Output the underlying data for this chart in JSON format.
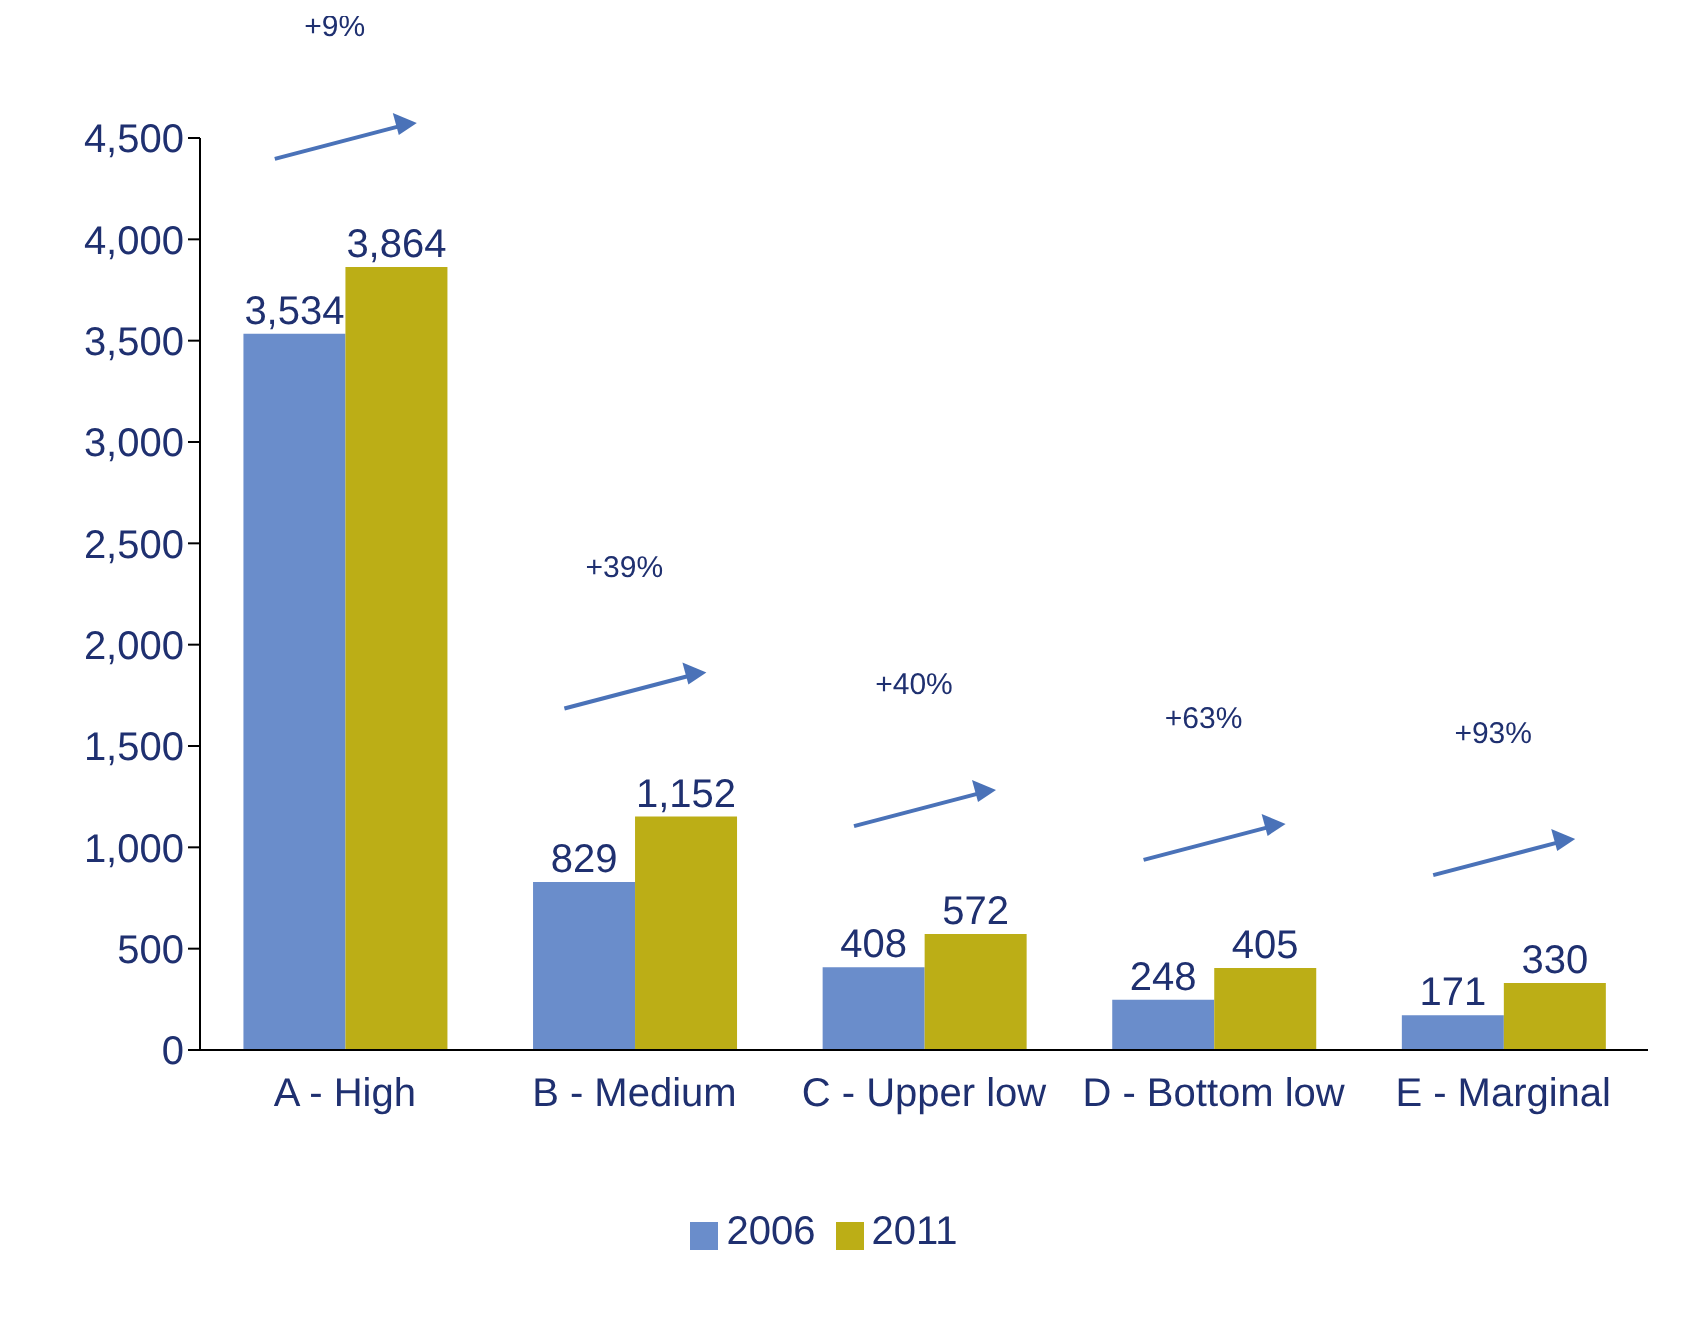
{
  "chart_data": {
    "type": "bar",
    "categories": [
      "A - High",
      "B - Medium",
      "C - Upper low",
      "D - Bottom low",
      "E - Marginal"
    ],
    "series": [
      {
        "name": "2006",
        "color": "#6a8dcb",
        "values": [
          3534,
          829,
          408,
          248,
          171
        ],
        "value_labels": [
          "3,534",
          "829",
          "408",
          "248",
          "171"
        ]
      },
      {
        "name": "2011",
        "color": "#bcae16",
        "values": [
          3864,
          1152,
          572,
          405,
          330
        ],
        "value_labels": [
          "3,864",
          "1,152",
          "572",
          "405",
          "330"
        ]
      }
    ],
    "ylim": [
      0,
      4500
    ],
    "yticks": [
      0,
      500,
      {
        "value": 1000,
        "label": "1,000"
      },
      {
        "value": 1500,
        "label": "1,500"
      },
      {
        "value": 2000,
        "label": "2,000"
      },
      {
        "value": 2500,
        "label": "2,500"
      },
      {
        "value": 3000,
        "label": "3,000"
      },
      {
        "value": 3500,
        "label": "3,500"
      },
      {
        "value": 4000,
        "label": "4,000"
      },
      {
        "value": 4500,
        "label": "4,500"
      }
    ],
    "annotations": [
      "+9%",
      "+39%",
      "+40%",
      "+63%",
      "+93%"
    ],
    "grid": false,
    "legend": "bottom"
  }
}
